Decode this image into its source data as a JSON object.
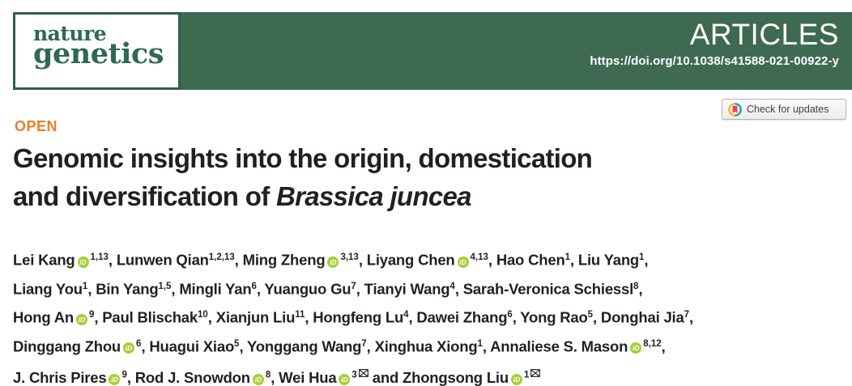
{
  "masthead": {
    "journal": {
      "line1": "nature",
      "line2": "genetics"
    },
    "section_label": "ARTICLES",
    "doi": "https://doi.org/10.1038/s41588-021-00922-y"
  },
  "update_badge": {
    "label": "Check for updates"
  },
  "article": {
    "access_label": "OPEN",
    "title_lines": [
      [
        {
          "t": "Genomic insights into the origin, domestication"
        }
      ],
      [
        {
          "t": "and diversification of "
        },
        {
          "t": "Brassica juncea",
          "italic": true
        }
      ]
    ],
    "author_lines": [
      [
        {
          "name": "Lei Kang",
          "orcid": true,
          "sup": "1,13",
          "sep": ", "
        },
        {
          "name": "Lunwen Qian",
          "sup": "1,2,13",
          "sep": ", "
        },
        {
          "name": "Ming Zheng",
          "orcid": true,
          "sup": "3,13",
          "sep": ", "
        },
        {
          "name": "Liyang Chen",
          "orcid": true,
          "sup": "4,13",
          "sep": ", "
        },
        {
          "name": "Hao Chen",
          "sup": "1",
          "sep": ", "
        },
        {
          "name": "Liu Yang",
          "sup": "1",
          "sep": ","
        }
      ],
      [
        {
          "name": "Liang You",
          "sup": "1",
          "sep": ", "
        },
        {
          "name": "Bin Yang",
          "sup": "1,5",
          "sep": ", "
        },
        {
          "name": "Mingli Yan",
          "sup": "6",
          "sep": ", "
        },
        {
          "name": "Yuanguo Gu",
          "sup": "7",
          "sep": ", "
        },
        {
          "name": "Tianyi Wang",
          "sup": "4",
          "sep": ", "
        },
        {
          "name": "Sarah-Veronica Schiessl",
          "sup": "8",
          "sep": ","
        }
      ],
      [
        {
          "name": "Hong An",
          "orcid": true,
          "sup": "9",
          "sep": ", "
        },
        {
          "name": "Paul Blischak",
          "sup": "10",
          "sep": ", "
        },
        {
          "name": "Xianjun Liu",
          "sup": "11",
          "sep": ", "
        },
        {
          "name": "Hongfeng Lu",
          "sup": "4",
          "sep": ", "
        },
        {
          "name": "Dawei Zhang",
          "sup": "6",
          "sep": ", "
        },
        {
          "name": "Yong Rao",
          "sup": "5",
          "sep": ", "
        },
        {
          "name": "Donghai Jia",
          "sup": "7",
          "sep": ","
        }
      ],
      [
        {
          "name": "Dinggang Zhou",
          "orcid": true,
          "sup": "6",
          "sep": ", "
        },
        {
          "name": "Huagui Xiao",
          "sup": "5",
          "sep": ", "
        },
        {
          "name": "Yonggang Wang",
          "sup": "7",
          "sep": ", "
        },
        {
          "name": "Xinghua Xiong",
          "sup": "1",
          "sep": ", "
        },
        {
          "name": "Annaliese S. Mason",
          "orcid": true,
          "sup": "8,12",
          "sep": ","
        }
      ],
      [
        {
          "name": "J. Chris Pires",
          "orcid": true,
          "sup": "9",
          "sep": ", "
        },
        {
          "name": "Rod J. Snowdon",
          "orcid": true,
          "sup": "8",
          "sep": ", "
        },
        {
          "name": "Wei Hua",
          "orcid": true,
          "sup": "3",
          "mail": true,
          "sep": " and "
        },
        {
          "name": "Zhongsong Liu",
          "orcid": true,
          "sup": "1",
          "mail": true,
          "sep": ""
        }
      ]
    ]
  },
  "icons": {
    "orcid_text": "iD",
    "orcid_meaning": "orcid-id-icon",
    "envelope_meaning": "corresponding-author-email-icon",
    "crossmark_meaning": "crossmark-check-for-updates-icon"
  },
  "colors": {
    "banner_green": "#3e6a52",
    "logo_green": "#2f6a50",
    "logo_border": "#2e5f48",
    "open_orange": "#ef7d26",
    "text_black": "#231f20",
    "orcid_green": "#a6ce39",
    "badge_border": "#b5b5b5",
    "badge_text": "#414141",
    "crossmark_teal": "#00a3a0",
    "crossmark_yellow": "#fcb316",
    "crossmark_red": "#ef4048"
  }
}
